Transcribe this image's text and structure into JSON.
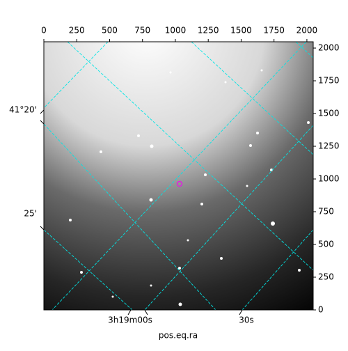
{
  "chart_data": {
    "type": "image",
    "xlabel": "pos.eq.ra",
    "xlim": [
      0,
      2048
    ],
    "xticks": [
      0,
      250,
      500,
      750,
      1000,
      1250,
      1500,
      1750,
      2000
    ],
    "ylim": [
      0,
      2048
    ],
    "yticks": [
      0,
      250,
      500,
      750,
      1000,
      1250,
      1500,
      1750,
      2000
    ],
    "ra_tick_labels": [
      "3h19m00s",
      "30s"
    ],
    "dec_tick_labels": [
      "41°20'",
      "25'"
    ],
    "grid_color": "#00e5e5",
    "marker_color": "#e020e0"
  }
}
